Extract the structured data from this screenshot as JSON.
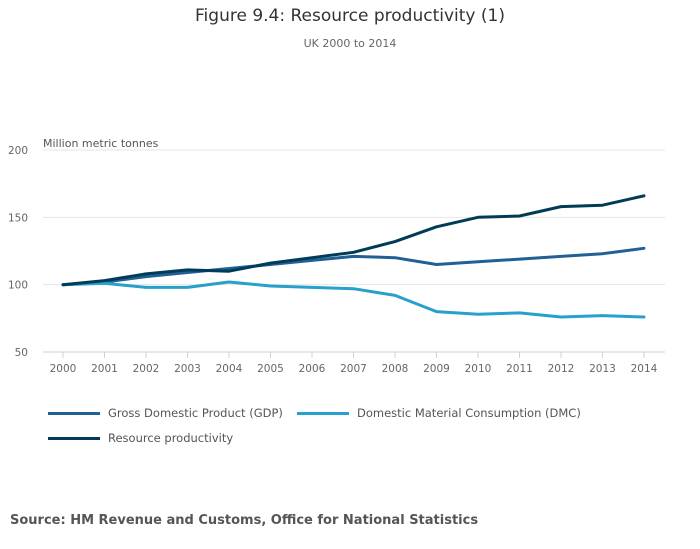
{
  "chart_data": {
    "type": "line",
    "title": "Figure 9.4: Resource productivity (1)",
    "subtitle": "UK 2000 to 2014",
    "ylabel": "Million metric tonnes",
    "xlabel": "",
    "ylim": [
      50,
      200
    ],
    "yticks": [
      "50",
      "100",
      "150",
      "200"
    ],
    "ytick_values": [
      50,
      100,
      150,
      200
    ],
    "x": [
      "2000",
      "2001",
      "2002",
      "2003",
      "2004",
      "2005",
      "2006",
      "2007",
      "2008",
      "2009",
      "2010",
      "2011",
      "2012",
      "2013",
      "2014"
    ],
    "grid": true,
    "legend_position": "bottom-left",
    "series": [
      {
        "name": "Gross Domestic Product (GDP)",
        "color": "#206095",
        "values": [
          100,
          102,
          106,
          109,
          112,
          115,
          118,
          121,
          120,
          115,
          117,
          119,
          121,
          123,
          127
        ]
      },
      {
        "name": "Domestic Material Consumption (DMC)",
        "color": "#27a0cc",
        "values": [
          100,
          101,
          98,
          98,
          102,
          99,
          98,
          97,
          92,
          80,
          78,
          79,
          76,
          77,
          76
        ]
      },
      {
        "name": "Resource productivity",
        "color": "#003c57",
        "values": [
          100,
          103,
          108,
          111,
          110,
          116,
          120,
          124,
          132,
          143,
          150,
          151,
          158,
          159,
          166
        ]
      }
    ]
  },
  "source": "Source: HM Revenue and Customs, Office for National Statistics"
}
